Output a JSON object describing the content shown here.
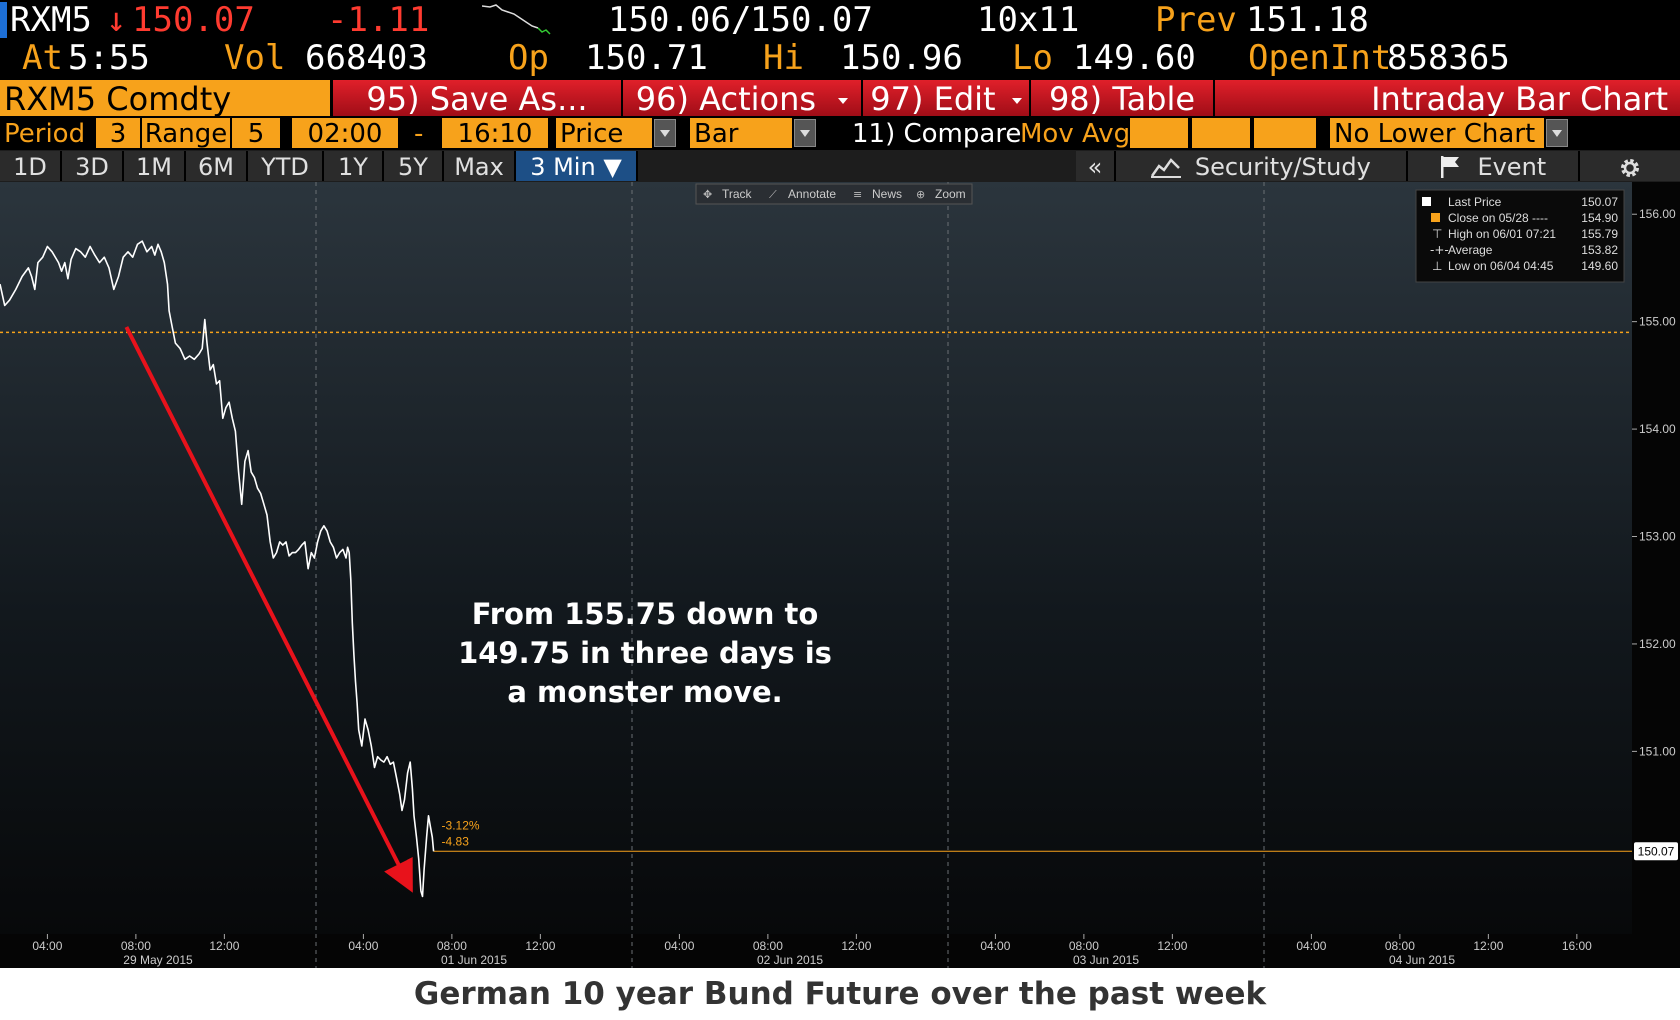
{
  "header": {
    "ticker": "RXM5",
    "arrow": "↓",
    "last": "150.07",
    "change": "-1.11",
    "bid_ask_bid": "150.06",
    "bid_ask_sep": "/",
    "bid_ask_ask": "150.07",
    "size": "10x11",
    "prev_label": "Prev",
    "prev_value": "151.18",
    "at_label": "At",
    "time": "5:55",
    "vol_label": "Vol",
    "vol_value": "668403",
    "op_label": "Op",
    "op_value": "150.71",
    "hi_label": "Hi",
    "hi_value": "150.96",
    "lo_label": "Lo",
    "lo_value": "149.60",
    "oi_label": "OpenInt",
    "oi_value": "858365"
  },
  "toolbar": {
    "security": "RXM5 Comdty",
    "save_as": "95) Save As...",
    "actions": "96) Actions",
    "edit": "97) Edit",
    "table": "98) Table",
    "chart_type": "Intraday Bar Chart"
  },
  "settings": {
    "period_label": "Period",
    "period_value": "3",
    "range_label": "Range",
    "range_value": "5",
    "start_time": "02:00",
    "dash": "-",
    "end_time": "16:10",
    "field": "Price",
    "style": "Bar",
    "compare": "11) Compare",
    "mov_avg": "Mov Avg",
    "lower_chart": "No Lower Chart"
  },
  "timeframes": [
    "1D",
    "3D",
    "1M",
    "6M",
    "YTD",
    "1Y",
    "5Y",
    "Max",
    "3 Min ▼"
  ],
  "right_tools": {
    "collapse": "«",
    "security_study": "Security/Study",
    "event": "Event"
  },
  "chart_tools": [
    "Track",
    "Annotate",
    "News",
    "Zoom"
  ],
  "colors": {
    "orange": "#f7a21b",
    "red_button": "#c8141e",
    "price_line": "#ffffff",
    "arrow": "#e8121b",
    "close_line": "#f7a21b"
  },
  "chart_data": {
    "type": "line",
    "title": "",
    "xlabel": "",
    "ylabel": "",
    "ylim": [
      149.3,
      156.3
    ],
    "y_ticks": [
      "156.00",
      "155.00",
      "154.00",
      "153.00",
      "152.00",
      "151.00"
    ],
    "x_hour_ticks": [
      "04:00",
      "08:00",
      "12:00",
      "04:00",
      "08:00",
      "12:00",
      "04:00",
      "08:00",
      "12:00",
      "04:00",
      "08:00",
      "12:00",
      "04:00",
      "08:00",
      "12:00",
      "16:00"
    ],
    "x_date_ticks": [
      "29 May 2015",
      "01 Jun 2015",
      "02 Jun 2015",
      "03 Jun 2015",
      "04 Jun 2015"
    ],
    "series": [
      {
        "values": [
          [
            0,
            155.35
          ],
          [
            0.015,
            155.15
          ],
          [
            0.03,
            155.2
          ],
          [
            0.05,
            155.3
          ],
          [
            0.07,
            155.42
          ],
          [
            0.09,
            155.5
          ],
          [
            0.1,
            155.42
          ],
          [
            0.11,
            155.3
          ],
          [
            0.12,
            155.55
          ],
          [
            0.135,
            155.6
          ],
          [
            0.15,
            155.7
          ],
          [
            0.165,
            155.65
          ],
          [
            0.185,
            155.55
          ],
          [
            0.195,
            155.47
          ],
          [
            0.205,
            155.55
          ],
          [
            0.215,
            155.4
          ],
          [
            0.225,
            155.58
          ],
          [
            0.24,
            155.68
          ],
          [
            0.255,
            155.65
          ],
          [
            0.27,
            155.6
          ],
          [
            0.285,
            155.7
          ],
          [
            0.3,
            155.62
          ],
          [
            0.315,
            155.55
          ],
          [
            0.33,
            155.6
          ],
          [
            0.345,
            155.5
          ],
          [
            0.36,
            155.3
          ],
          [
            0.375,
            155.42
          ],
          [
            0.39,
            155.6
          ],
          [
            0.405,
            155.65
          ],
          [
            0.42,
            155.6
          ],
          [
            0.435,
            155.72
          ],
          [
            0.45,
            155.75
          ],
          [
            0.465,
            155.65
          ],
          [
            0.48,
            155.7
          ],
          [
            0.49,
            155.62
          ],
          [
            0.5,
            155.72
          ],
          [
            0.51,
            155.65
          ],
          [
            0.52,
            155.55
          ],
          [
            0.53,
            155.35
          ],
          [
            0.535,
            155.1
          ],
          [
            0.545,
            154.95
          ],
          [
            0.555,
            154.8
          ],
          [
            0.57,
            154.75
          ],
          [
            0.585,
            154.65
          ],
          [
            0.6,
            154.68
          ],
          [
            0.615,
            154.65
          ],
          [
            0.63,
            154.7
          ],
          [
            0.64,
            154.75
          ],
          [
            0.648,
            155.02
          ],
          [
            0.655,
            154.8
          ],
          [
            0.665,
            154.55
          ],
          [
            0.675,
            154.6
          ],
          [
            0.685,
            154.42
          ],
          [
            0.695,
            154.45
          ],
          [
            0.705,
            154.1
          ],
          [
            0.715,
            154.2
          ],
          [
            0.725,
            154.25
          ],
          [
            0.735,
            154.1
          ],
          [
            0.745,
            153.98
          ],
          [
            0.755,
            153.6
          ],
          [
            0.765,
            153.3
          ],
          [
            0.775,
            153.7
          ],
          [
            0.785,
            153.8
          ],
          [
            0.795,
            153.6
          ],
          [
            0.805,
            153.55
          ],
          [
            0.815,
            153.45
          ],
          [
            0.825,
            153.4
          ],
          [
            0.835,
            153.3
          ],
          [
            0.845,
            153.2
          ],
          [
            0.855,
            152.95
          ],
          [
            0.865,
            152.8
          ],
          [
            0.875,
            152.85
          ],
          [
            0.885,
            152.95
          ],
          [
            0.895,
            152.92
          ],
          [
            0.905,
            152.95
          ],
          [
            0.915,
            152.82
          ],
          [
            0.925,
            152.85
          ],
          [
            0.935,
            152.85
          ],
          [
            0.945,
            152.88
          ],
          [
            0.955,
            152.92
          ],
          [
            0.965,
            152.95
          ],
          [
            0.975,
            152.7
          ],
          [
            0.985,
            152.85
          ],
          [
            0.995,
            152.8
          ],
          [
            1.005,
            152.95
          ],
          [
            1.015,
            153.05
          ],
          [
            1.025,
            153.1
          ],
          [
            1.035,
            153.05
          ],
          [
            1.045,
            152.95
          ],
          [
            1.055,
            152.9
          ],
          [
            1.065,
            152.8
          ],
          [
            1.075,
            152.85
          ],
          [
            1.085,
            152.88
          ],
          [
            1.095,
            152.8
          ],
          [
            1.1,
            152.9
          ],
          [
            1.105,
            152.85
          ],
          [
            1.11,
            152.6
          ],
          [
            1.115,
            152.2
          ],
          [
            1.12,
            151.9
          ],
          [
            1.125,
            151.65
          ],
          [
            1.13,
            151.45
          ],
          [
            1.135,
            151.2
          ],
          [
            1.145,
            151.05
          ],
          [
            1.155,
            151.3
          ],
          [
            1.165,
            151.2
          ],
          [
            1.175,
            151.05
          ],
          [
            1.185,
            150.85
          ],
          [
            1.195,
            150.95
          ],
          [
            1.205,
            150.92
          ],
          [
            1.215,
            150.9
          ],
          [
            1.225,
            150.95
          ],
          [
            1.235,
            150.88
          ],
          [
            1.245,
            150.9
          ],
          [
            1.255,
            150.75
          ],
          [
            1.265,
            150.6
          ],
          [
            1.272,
            150.45
          ],
          [
            1.28,
            150.55
          ],
          [
            1.29,
            150.8
          ],
          [
            1.298,
            150.9
          ],
          [
            1.305,
            150.65
          ],
          [
            1.31,
            150.4
          ],
          [
            1.318,
            150.2
          ],
          [
            1.325,
            150.0
          ],
          [
            1.332,
            149.7
          ],
          [
            1.337,
            149.65
          ],
          [
            1.342,
            149.9
          ],
          [
            1.35,
            150.2
          ],
          [
            1.356,
            150.4
          ],
          [
            1.362,
            150.3
          ],
          [
            1.368,
            150.2
          ],
          [
            1.372,
            150.07
          ]
        ]
      }
    ],
    "prev_close_line": 154.9,
    "last_price_label": "150.07",
    "pct_change": "-3.12%",
    "net_change": "-4.83",
    "legend": [
      {
        "label": "Last Price",
        "value": "150.07"
      },
      {
        "label": "Close on 05/28 ----",
        "value": "154.90"
      },
      {
        "label": "High on 06/01 07:21",
        "value": "155.79"
      },
      {
        "label": "Average",
        "value": "153.82"
      },
      {
        "label": "Low on 06/04 04:45",
        "value": "149.60"
      }
    ],
    "annotation_lines": [
      "From 155.75 down to",
      "149.75 in three days is",
      "a monster move."
    ],
    "arrow_from": [
      0.4,
      154.95
    ],
    "arrow_to": [
      1.295,
      149.75
    ]
  },
  "caption": "German 10 year Bund Future over the past week"
}
